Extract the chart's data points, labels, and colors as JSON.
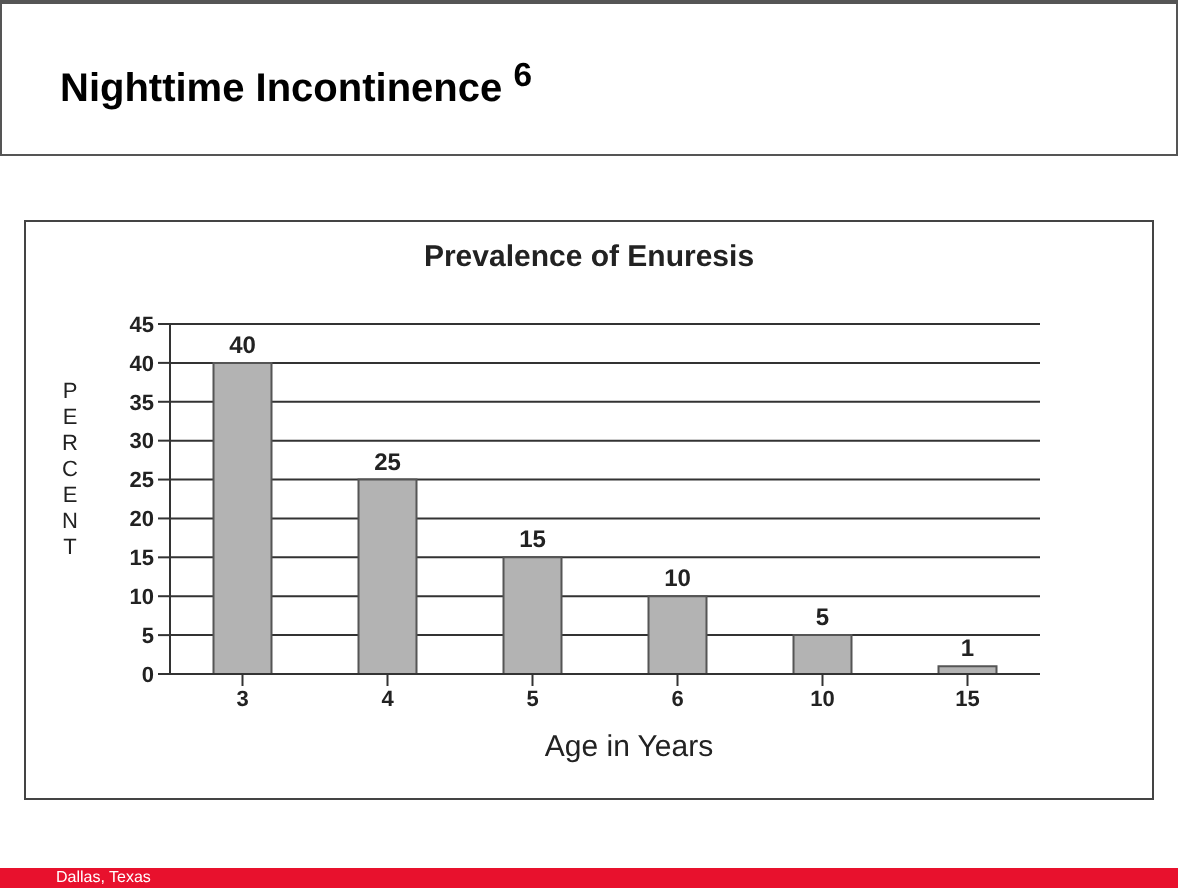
{
  "chart_data": {
    "type": "bar",
    "title": "Nighttime Incontinence $^{6}$",
    "subtitle": "Prevalence of Enuresis",
    "xlabel": "Age in Years",
    "ylabel": "PERCENT",
    "categories": [
      "3",
      "4",
      "5",
      "6",
      "10",
      "15"
    ],
    "values": [
      40,
      25,
      15,
      10,
      5,
      1
    ],
    "color": "#b3b3b3",
    "ylim": [
      0,
      45
    ],
    "yticks": [
      0,
      5,
      10,
      15,
      20,
      25,
      30,
      35,
      40,
      45
    ],
    "grid": "y",
    "data_labels": true,
    "annotations": [
      "Dallas, Texas"
    ]
  }
}
